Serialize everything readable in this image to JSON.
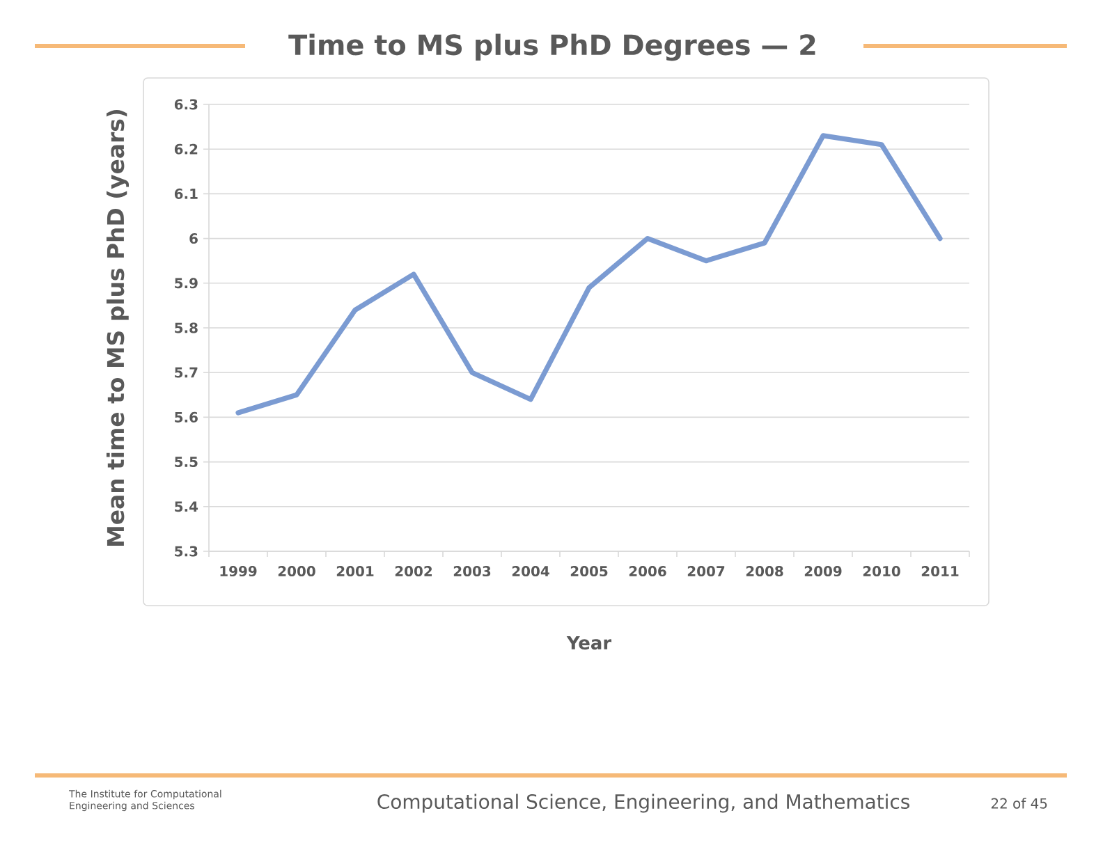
{
  "chart_data": {
    "type": "line",
    "title": "Time to MS plus PhD Degrees — 2",
    "xlabel": "Year",
    "ylabel": "Mean time to MS plus PhD (years)",
    "categories": [
      "1999",
      "2000",
      "2001",
      "2002",
      "2003",
      "2004",
      "2005",
      "2006",
      "2007",
      "2008",
      "2009",
      "2010",
      "2011"
    ],
    "values": [
      5.61,
      5.65,
      5.84,
      5.92,
      5.7,
      5.64,
      5.89,
      6.0,
      5.95,
      5.99,
      6.23,
      6.21,
      6.0
    ],
    "color": "#7b9bd2",
    "marker": "none",
    "line_style": "solid",
    "grid": "y",
    "ylim": [
      5.3,
      6.3
    ],
    "yticks": [
      5.3,
      5.4,
      5.5,
      5.6,
      5.7,
      5.8,
      5.9,
      6,
      6.1,
      6.2,
      6.3
    ],
    "annotations": [
      "The Institute for Computational Engineering and Sciences",
      "Computational Science, Engineering, and Mathematics",
      "22 of 45"
    ]
  }
}
